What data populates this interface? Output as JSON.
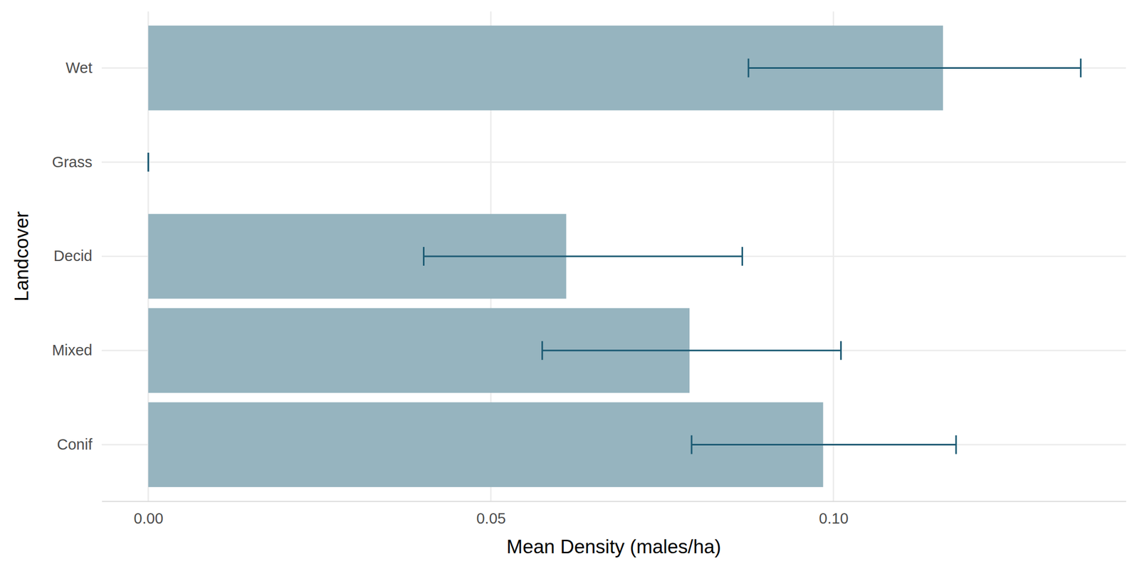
{
  "chart_data": {
    "type": "bar",
    "orientation": "horizontal",
    "x_label": "Mean Density (males/ha)",
    "y_label": "Landcover",
    "categories": [
      "Wet",
      "Grass",
      "Decid",
      "Mixed",
      "Conif"
    ],
    "values": [
      0.116,
      0,
      0.061,
      0.079,
      0.0985
    ],
    "error_bars": {
      "lower": [
        0.0876,
        0,
        0.0402,
        0.0575,
        0.0793
      ],
      "upper": [
        0.1361,
        0,
        0.0867,
        0.1011,
        0.1179
      ]
    },
    "color": "#96b4bf",
    "xlim": [
      -0.0068,
      0.1427
    ],
    "xticks": [
      {
        "value": 0,
        "label": "0.00"
      },
      {
        "value": 0.05,
        "label": "0.05"
      },
      {
        "value": 0.1,
        "label": "0.10"
      }
    ],
    "grid": true
  }
}
